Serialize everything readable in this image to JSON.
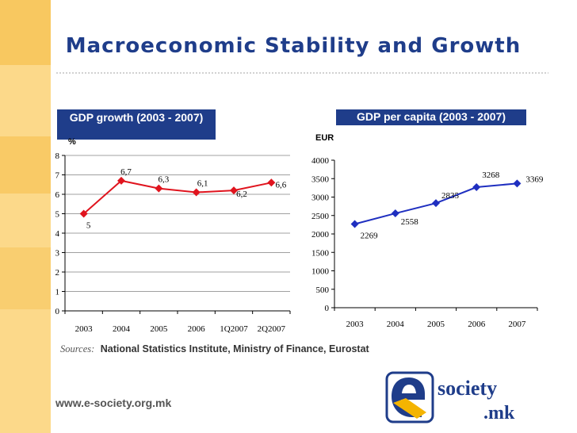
{
  "title": "Macroeconomic Stability and Growth",
  "footer": {
    "sources_label": "Sources:",
    "sources_text": "National Statistics Institute, Ministry of Finance, Eurostat",
    "website": "www.e-society.org.mk",
    "logo_text": "society",
    "logo_domain": ".mk"
  },
  "colors": {
    "primary": "#1f3d8a",
    "accent": "#fcd98a",
    "line_left": "#e0141e",
    "line_right": "#1f2fc0"
  },
  "chart_data": [
    {
      "type": "line",
      "title": "GDP growth (2003 - 2007)",
      "ylabel": "%",
      "categories": [
        "2003",
        "2004",
        "2005",
        "2006",
        "1Q2007",
        "2Q2007"
      ],
      "values": [
        5,
        6.7,
        6.3,
        6.1,
        6.2,
        6.6
      ],
      "data_labels": [
        "5",
        "6,7",
        "6,3",
        "6,1",
        "6,2",
        "6,6"
      ],
      "ylim": [
        0,
        8
      ],
      "yticks": [
        "0",
        "1",
        "2",
        "3",
        "4",
        "5",
        "6",
        "7",
        "8"
      ],
      "grid": true
    },
    {
      "type": "line",
      "title": "GDP per capita (2003 - 2007)",
      "ylabel": "EUR",
      "categories": [
        "2003",
        "2004",
        "2005",
        "2006",
        "2007"
      ],
      "values": [
        2269,
        2558,
        2835,
        3268,
        3369
      ],
      "data_labels": [
        "2269",
        "2558",
        "2835",
        "3268",
        "3369"
      ],
      "ylim": [
        0,
        4000
      ],
      "yticks": [
        "0",
        "500",
        "1000",
        "1500",
        "2000",
        "2500",
        "3000",
        "3500",
        "4000"
      ],
      "grid": false
    }
  ]
}
